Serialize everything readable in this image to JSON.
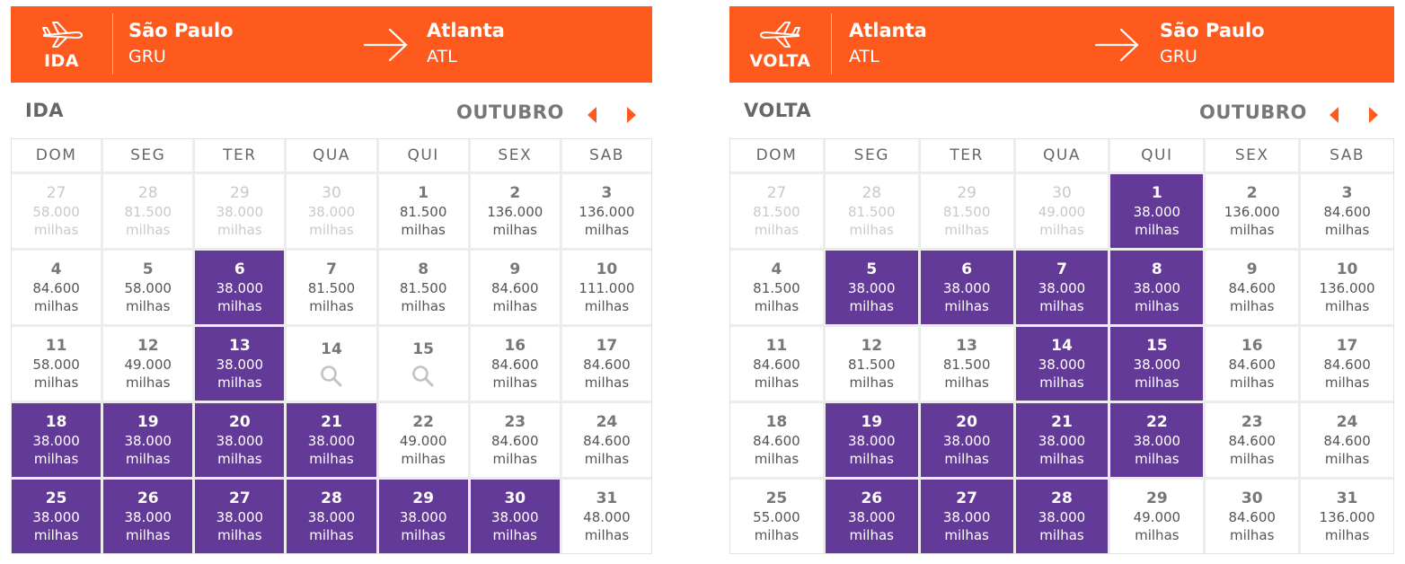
{
  "ida": {
    "tag": "IDA",
    "origin": {
      "city": "São Paulo",
      "code": "GRU"
    },
    "destination": {
      "city": "Atlanta",
      "code": "ATL"
    },
    "title": "IDA",
    "month": "OUTUBRO",
    "weekdays": [
      "DOM",
      "SEG",
      "TER",
      "QUA",
      "QUI",
      "SEX",
      "SAB"
    ],
    "days": [
      {
        "day": "27",
        "price": "58.000",
        "unit": "milhas",
        "state": "muted"
      },
      {
        "day": "28",
        "price": "81.500",
        "unit": "milhas",
        "state": "muted"
      },
      {
        "day": "29",
        "price": "38.000",
        "unit": "milhas",
        "state": "muted"
      },
      {
        "day": "30",
        "price": "38.000",
        "unit": "milhas",
        "state": "muted"
      },
      {
        "day": "1",
        "price": "81.500",
        "unit": "milhas",
        "state": "normal"
      },
      {
        "day": "2",
        "price": "136.000",
        "unit": "milhas",
        "state": "normal"
      },
      {
        "day": "3",
        "price": "136.000",
        "unit": "milhas",
        "state": "normal"
      },
      {
        "day": "4",
        "price": "84.600",
        "unit": "milhas",
        "state": "normal"
      },
      {
        "day": "5",
        "price": "58.000",
        "unit": "milhas",
        "state": "normal"
      },
      {
        "day": "6",
        "price": "38.000",
        "unit": "milhas",
        "state": "promo"
      },
      {
        "day": "7",
        "price": "81.500",
        "unit": "milhas",
        "state": "normal"
      },
      {
        "day": "8",
        "price": "81.500",
        "unit": "milhas",
        "state": "normal"
      },
      {
        "day": "9",
        "price": "84.600",
        "unit": "milhas",
        "state": "normal"
      },
      {
        "day": "10",
        "price": "111.000",
        "unit": "milhas",
        "state": "normal"
      },
      {
        "day": "11",
        "price": "58.000",
        "unit": "milhas",
        "state": "normal"
      },
      {
        "day": "12",
        "price": "49.000",
        "unit": "milhas",
        "state": "normal"
      },
      {
        "day": "13",
        "price": "38.000",
        "unit": "milhas",
        "state": "promo"
      },
      {
        "day": "14",
        "price": "",
        "unit": "",
        "state": "search"
      },
      {
        "day": "15",
        "price": "",
        "unit": "",
        "state": "search"
      },
      {
        "day": "16",
        "price": "84.600",
        "unit": "milhas",
        "state": "normal"
      },
      {
        "day": "17",
        "price": "84.600",
        "unit": "milhas",
        "state": "normal"
      },
      {
        "day": "18",
        "price": "38.000",
        "unit": "milhas",
        "state": "promo"
      },
      {
        "day": "19",
        "price": "38.000",
        "unit": "milhas",
        "state": "promo"
      },
      {
        "day": "20",
        "price": "38.000",
        "unit": "milhas",
        "state": "promo"
      },
      {
        "day": "21",
        "price": "38.000",
        "unit": "milhas",
        "state": "promo"
      },
      {
        "day": "22",
        "price": "49.000",
        "unit": "milhas",
        "state": "normal"
      },
      {
        "day": "23",
        "price": "84.600",
        "unit": "milhas",
        "state": "normal"
      },
      {
        "day": "24",
        "price": "84.600",
        "unit": "milhas",
        "state": "normal"
      },
      {
        "day": "25",
        "price": "38.000",
        "unit": "milhas",
        "state": "promo"
      },
      {
        "day": "26",
        "price": "38.000",
        "unit": "milhas",
        "state": "promo"
      },
      {
        "day": "27",
        "price": "38.000",
        "unit": "milhas",
        "state": "promo"
      },
      {
        "day": "28",
        "price": "38.000",
        "unit": "milhas",
        "state": "promo"
      },
      {
        "day": "29",
        "price": "38.000",
        "unit": "milhas",
        "state": "promo"
      },
      {
        "day": "30",
        "price": "38.000",
        "unit": "milhas",
        "state": "promo"
      },
      {
        "day": "31",
        "price": "48.000",
        "unit": "milhas",
        "state": "normal"
      }
    ]
  },
  "volta": {
    "tag": "VOLTA",
    "origin": {
      "city": "Atlanta",
      "code": "ATL"
    },
    "destination": {
      "city": "São Paulo",
      "code": "GRU"
    },
    "title": "VOLTA",
    "month": "OUTUBRO",
    "weekdays": [
      "DOM",
      "SEG",
      "TER",
      "QUA",
      "QUI",
      "SEX",
      "SAB"
    ],
    "days": [
      {
        "day": "27",
        "price": "81.500",
        "unit": "milhas",
        "state": "muted"
      },
      {
        "day": "28",
        "price": "81.500",
        "unit": "milhas",
        "state": "muted"
      },
      {
        "day": "29",
        "price": "81.500",
        "unit": "milhas",
        "state": "muted"
      },
      {
        "day": "30",
        "price": "49.000",
        "unit": "milhas",
        "state": "muted"
      },
      {
        "day": "1",
        "price": "38.000",
        "unit": "milhas",
        "state": "promo"
      },
      {
        "day": "2",
        "price": "136.000",
        "unit": "milhas",
        "state": "normal"
      },
      {
        "day": "3",
        "price": "84.600",
        "unit": "milhas",
        "state": "normal"
      },
      {
        "day": "4",
        "price": "81.500",
        "unit": "milhas",
        "state": "normal"
      },
      {
        "day": "5",
        "price": "38.000",
        "unit": "milhas",
        "state": "promo"
      },
      {
        "day": "6",
        "price": "38.000",
        "unit": "milhas",
        "state": "promo"
      },
      {
        "day": "7",
        "price": "38.000",
        "unit": "milhas",
        "state": "promo"
      },
      {
        "day": "8",
        "price": "38.000",
        "unit": "milhas",
        "state": "promo"
      },
      {
        "day": "9",
        "price": "84.600",
        "unit": "milhas",
        "state": "normal"
      },
      {
        "day": "10",
        "price": "136.000",
        "unit": "milhas",
        "state": "normal"
      },
      {
        "day": "11",
        "price": "84.600",
        "unit": "milhas",
        "state": "normal"
      },
      {
        "day": "12",
        "price": "81.500",
        "unit": "milhas",
        "state": "normal"
      },
      {
        "day": "13",
        "price": "81.500",
        "unit": "milhas",
        "state": "normal"
      },
      {
        "day": "14",
        "price": "38.000",
        "unit": "milhas",
        "state": "promo"
      },
      {
        "day": "15",
        "price": "38.000",
        "unit": "milhas",
        "state": "promo"
      },
      {
        "day": "16",
        "price": "84.600",
        "unit": "milhas",
        "state": "normal"
      },
      {
        "day": "17",
        "price": "84.600",
        "unit": "milhas",
        "state": "normal"
      },
      {
        "day": "18",
        "price": "84.600",
        "unit": "milhas",
        "state": "normal"
      },
      {
        "day": "19",
        "price": "38.000",
        "unit": "milhas",
        "state": "promo"
      },
      {
        "day": "20",
        "price": "38.000",
        "unit": "milhas",
        "state": "promo"
      },
      {
        "day": "21",
        "price": "38.000",
        "unit": "milhas",
        "state": "promo"
      },
      {
        "day": "22",
        "price": "38.000",
        "unit": "milhas",
        "state": "promo"
      },
      {
        "day": "23",
        "price": "84.600",
        "unit": "milhas",
        "state": "normal"
      },
      {
        "day": "24",
        "price": "84.600",
        "unit": "milhas",
        "state": "normal"
      },
      {
        "day": "25",
        "price": "55.000",
        "unit": "milhas",
        "state": "normal"
      },
      {
        "day": "26",
        "price": "38.000",
        "unit": "milhas",
        "state": "promo"
      },
      {
        "day": "27",
        "price": "38.000",
        "unit": "milhas",
        "state": "promo"
      },
      {
        "day": "28",
        "price": "38.000",
        "unit": "milhas",
        "state": "promo"
      },
      {
        "day": "29",
        "price": "49.000",
        "unit": "milhas",
        "state": "normal"
      },
      {
        "day": "30",
        "price": "84.600",
        "unit": "milhas",
        "state": "normal"
      },
      {
        "day": "31",
        "price": "136.000",
        "unit": "milhas",
        "state": "normal"
      }
    ]
  },
  "colors": {
    "accent": "#ff5a1e",
    "promo": "#633a97",
    "muted": "#c9c9c9"
  },
  "icons": {
    "tag": "airplane-icon",
    "route": "arrow-right-icon",
    "prev": "chevron-left-icon",
    "next": "chevron-right-icon",
    "empty_day": "search-icon"
  }
}
